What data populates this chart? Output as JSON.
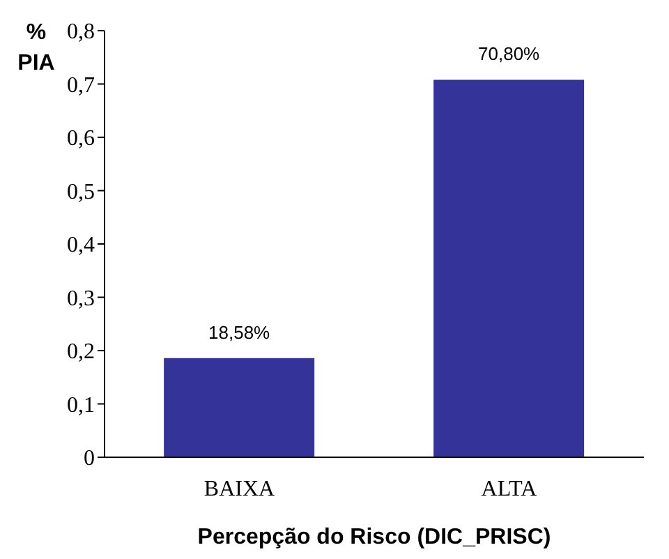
{
  "chart_data": {
    "type": "bar",
    "xlabel": "Percepção do Risco (DIC_PRISC)",
    "ylabel": "% PIA",
    "categories": [
      "BAIXA",
      "ALTA"
    ],
    "values": [
      0.1858,
      0.708
    ],
    "value_labels": [
      "18,58%",
      "70,80%"
    ],
    "color": "#333399",
    "ylim": [
      0,
      0.8
    ],
    "yticks": [
      0,
      {
        "value": 0.1,
        "label": "0,1"
      },
      {
        "value": 0.2,
        "label": "0,2"
      },
      {
        "value": 0.3,
        "label": "0,3"
      },
      {
        "value": 0.4,
        "label": "0,4"
      },
      {
        "value": 0.5,
        "label": "0,5"
      },
      {
        "value": 0.6,
        "label": "0,6"
      },
      {
        "value": 0.7,
        "label": "0,7"
      },
      {
        "value": 0.8,
        "label": "0,8"
      }
    ],
    "grid": false,
    "legend": false
  }
}
